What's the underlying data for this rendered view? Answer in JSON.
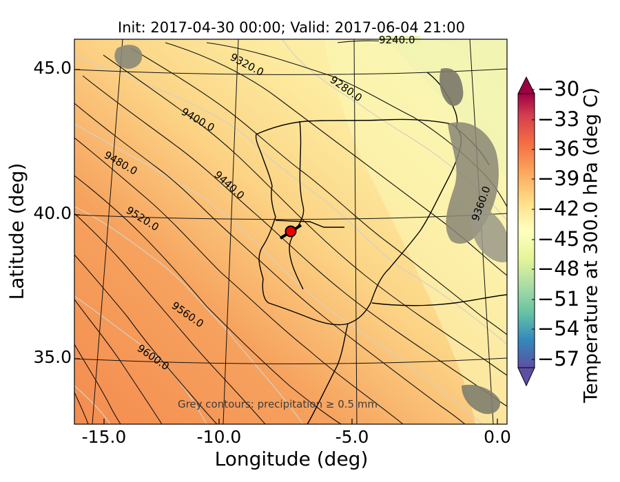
{
  "title": "Init: 2017-04-30 00:00; Valid: 2017-06-04 21:00",
  "x_axis": {
    "label": "Longitude (deg)",
    "ticks": [
      "-15.0",
      "-10.0",
      "-5.0",
      "0.0"
    ]
  },
  "y_axis": {
    "label": "Latitude (deg)",
    "ticks": [
      "45.0",
      "40.0",
      "35.0"
    ]
  },
  "colorbar": {
    "label": "Temperature at 300.0 hPa (deg C)",
    "ticks": [
      "−30",
      "−33",
      "−36",
      "−39",
      "−42",
      "−45",
      "−48",
      "−51",
      "−54",
      "−57"
    ],
    "min": -58.5,
    "max": -28.5,
    "extend": "both"
  },
  "annotation": "Grey contours: precipitation ≥ 0.5 mm",
  "height_contours": {
    "units": "m",
    "labels": [
      "9240.0",
      "9280.0",
      "9320.0",
      "9360.0",
      "9400.0",
      "9440.0",
      "9480.0",
      "9520.0",
      "9560.0",
      "9600.0"
    ]
  },
  "marker": {
    "name": "location-marker",
    "color": "#ee0000",
    "longitude": -7.6,
    "latitude": 39.3
  },
  "colors": {
    "warm": "#f6995a",
    "mid": "#fddc8a",
    "cool": "#fbf6b4"
  }
}
